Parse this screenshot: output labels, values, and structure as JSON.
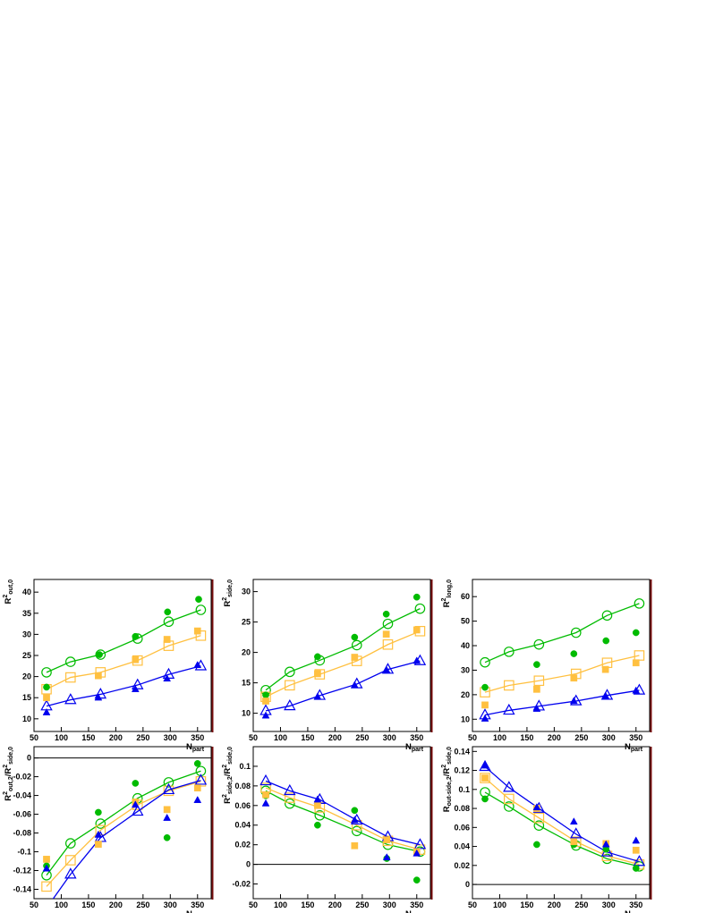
{
  "chart_data": [
    {
      "type": "scatter",
      "ylabel": [
        {
          "t": "R"
        },
        {
          "t": "2",
          "s": "sup"
        },
        {
          "t": "out,0",
          "s": "sub"
        }
      ],
      "xlabel": [
        {
          "t": "N"
        },
        {
          "t": "part",
          "s": "sub"
        }
      ],
      "xlim": [
        50,
        375
      ],
      "xticks": [
        50,
        100,
        150,
        200,
        250,
        300,
        350
      ],
      "ylim": [
        7,
        43
      ],
      "yticks": [
        10,
        15,
        20,
        25,
        30,
        35,
        40
      ],
      "zero_line": false,
      "series": [
        {
          "marker": "circle",
          "filled": false,
          "line": true,
          "color": "#00bb00",
          "x": [
            73,
            117,
            172,
            240,
            297,
            356
          ],
          "values": [
            21,
            23.5,
            25.2,
            29,
            33,
            35.8
          ]
        },
        {
          "marker": "square",
          "filled": false,
          "line": true,
          "color": "#ffc040",
          "x": [
            73,
            117,
            172,
            240,
            297,
            356
          ],
          "values": [
            17,
            19.8,
            21,
            23.8,
            27.3,
            29.7
          ]
        },
        {
          "marker": "triangle",
          "filled": false,
          "line": true,
          "color": "#0000ee",
          "x": [
            73,
            117,
            172,
            240,
            297,
            356
          ],
          "values": [
            13,
            14.5,
            15.8,
            18,
            20.5,
            22.5
          ]
        },
        {
          "marker": "circle",
          "filled": true,
          "line": false,
          "color": "#00bb00",
          "x": [
            73,
            170,
            236,
            295,
            352
          ],
          "values": [
            17.5,
            25.2,
            29.5,
            35.3,
            38.3
          ]
        },
        {
          "marker": "square",
          "filled": true,
          "line": false,
          "color": "#ffc040",
          "x": [
            73,
            168,
            236,
            294,
            350
          ],
          "values": [
            15,
            20.2,
            24,
            28.8,
            30.8
          ]
        },
        {
          "marker": "triangle",
          "filled": true,
          "line": false,
          "color": "#0000ee",
          "x": [
            73,
            168,
            236,
            294,
            350
          ],
          "values": [
            11.5,
            15,
            17,
            19.5,
            22.7
          ]
        }
      ]
    },
    {
      "type": "scatter",
      "ylabel": [
        {
          "t": "R"
        },
        {
          "t": "2",
          "s": "sup"
        },
        {
          "t": "side,0",
          "s": "sub"
        }
      ],
      "xlabel": [
        {
          "t": "N"
        },
        {
          "t": "part",
          "s": "sub"
        }
      ],
      "xlim": [
        50,
        375
      ],
      "xticks": [
        50,
        100,
        150,
        200,
        250,
        300,
        350
      ],
      "ylim": [
        7,
        32
      ],
      "yticks": [
        10,
        15,
        20,
        25,
        30
      ],
      "zero_line": false,
      "series": [
        {
          "marker": "circle",
          "filled": false,
          "line": true,
          "color": "#00bb00",
          "x": [
            73,
            117,
            172,
            240,
            297,
            356
          ],
          "values": [
            13.8,
            16.8,
            18.7,
            21.2,
            24.7,
            27.2
          ]
        },
        {
          "marker": "square",
          "filled": false,
          "line": true,
          "color": "#ffc040",
          "x": [
            73,
            117,
            172,
            240,
            297,
            356
          ],
          "values": [
            12.7,
            14.6,
            16.4,
            18.6,
            21.3,
            23.5
          ]
        },
        {
          "marker": "triangle",
          "filled": false,
          "line": true,
          "color": "#0000ee",
          "x": [
            73,
            117,
            172,
            240,
            297,
            356
          ],
          "values": [
            10.4,
            11.2,
            12.9,
            14.8,
            17.2,
            18.6
          ]
        },
        {
          "marker": "circle",
          "filled": true,
          "line": false,
          "color": "#00bb00",
          "x": [
            73,
            168,
            236,
            294,
            350
          ],
          "values": [
            13,
            19.3,
            22.5,
            26.3,
            29.1
          ]
        },
        {
          "marker": "square",
          "filled": true,
          "line": false,
          "color": "#ffc040",
          "x": [
            73,
            168,
            236,
            294,
            350
          ],
          "values": [
            12,
            16.5,
            19.2,
            23,
            23.7
          ]
        },
        {
          "marker": "triangle",
          "filled": true,
          "line": false,
          "color": "#0000ee",
          "x": [
            73,
            168,
            236,
            295,
            350
          ],
          "values": [
            9.6,
            12.7,
            14.6,
            17,
            18.6
          ]
        }
      ]
    },
    {
      "type": "scatter",
      "ylabel": [
        {
          "t": "R"
        },
        {
          "t": "2",
          "s": "sup"
        },
        {
          "t": "long,0",
          "s": "sub"
        }
      ],
      "xlabel": [
        {
          "t": "N"
        },
        {
          "t": "part",
          "s": "sub"
        }
      ],
      "xlim": [
        50,
        375
      ],
      "xticks": [
        50,
        100,
        150,
        200,
        250,
        300,
        350
      ],
      "ylim": [
        5,
        67
      ],
      "yticks": [
        10,
        20,
        30,
        40,
        50,
        60
      ],
      "zero_line": false,
      "series": [
        {
          "marker": "circle",
          "filled": false,
          "line": true,
          "color": "#00bb00",
          "x": [
            73,
            117,
            172,
            240,
            297,
            356
          ],
          "values": [
            33.2,
            37.5,
            40.5,
            45.3,
            52.3,
            57.2
          ]
        },
        {
          "marker": "square",
          "filled": false,
          "line": true,
          "color": "#ffc040",
          "x": [
            73,
            117,
            172,
            240,
            297,
            356
          ],
          "values": [
            21,
            23.8,
            25.7,
            28.5,
            33,
            36
          ]
        },
        {
          "marker": "triangle",
          "filled": false,
          "line": true,
          "color": "#0000ee",
          "x": [
            73,
            117,
            172,
            240,
            297,
            356
          ],
          "values": [
            11.7,
            13.6,
            15.3,
            17.4,
            19.7,
            21.8
          ]
        },
        {
          "marker": "circle",
          "filled": true,
          "line": false,
          "color": "#00bb00",
          "x": [
            73,
            168,
            236,
            295,
            350
          ],
          "values": [
            23,
            32.3,
            36.7,
            42,
            45.3
          ]
        },
        {
          "marker": "square",
          "filled": true,
          "line": false,
          "color": "#ffc040",
          "x": [
            73,
            168,
            236,
            294,
            350
          ],
          "values": [
            15.8,
            22.2,
            26.8,
            30.3,
            33
          ]
        },
        {
          "marker": "triangle",
          "filled": true,
          "line": false,
          "color": "#0000ee",
          "x": [
            73,
            168,
            236,
            294,
            350
          ],
          "values": [
            10.2,
            14.2,
            17.4,
            19.5,
            21.6
          ]
        }
      ]
    },
    {
      "type": "scatter",
      "ylabel": [
        {
          "t": "R"
        },
        {
          "t": "2",
          "s": "sup"
        },
        {
          "t": "out,2",
          "s": "sub"
        },
        {
          "t": "/R"
        },
        {
          "t": "2",
          "s": "sup"
        },
        {
          "t": "side,0",
          "s": "sub"
        }
      ],
      "xlabel": [
        {
          "t": "N"
        },
        {
          "t": "part",
          "s": "sub"
        }
      ],
      "xlim": [
        50,
        375
      ],
      "xticks": [
        50,
        100,
        150,
        200,
        250,
        300,
        350
      ],
      "ylim": [
        -0.15,
        0.012
      ],
      "yticks": [
        -0.14,
        -0.12,
        -0.1,
        -0.08,
        -0.06,
        -0.04,
        -0.02,
        0
      ],
      "zero_line": true,
      "series": [
        {
          "marker": "circle",
          "filled": false,
          "line": true,
          "color": "#00bb00",
          "x": [
            73,
            117,
            172,
            240,
            297,
            356
          ],
          "values": [
            -0.125,
            -0.091,
            -0.07,
            -0.043,
            -0.026,
            -0.014
          ]
        },
        {
          "marker": "square",
          "filled": false,
          "line": true,
          "color": "#ffc040",
          "x": [
            73,
            117,
            172,
            240,
            297,
            356
          ],
          "values": [
            -0.137,
            -0.109,
            -0.077,
            -0.05,
            -0.035,
            -0.025
          ]
        },
        {
          "marker": "triangle",
          "filled": false,
          "line": true,
          "color": "#0000ee",
          "x": [
            73,
            117,
            172,
            240,
            297,
            356
          ],
          "values": [
            -0.16,
            -0.124,
            -0.085,
            -0.057,
            -0.034,
            -0.024
          ]
        },
        {
          "marker": "circle",
          "filled": true,
          "line": false,
          "color": "#00bb00",
          "x": [
            73,
            168,
            236,
            294,
            350
          ],
          "values": [
            -0.115,
            -0.058,
            -0.027,
            -0.085,
            -0.006
          ]
        },
        {
          "marker": "square",
          "filled": true,
          "line": false,
          "color": "#ffc040",
          "x": [
            73,
            168,
            236,
            294,
            350
          ],
          "values": [
            -0.108,
            -0.092,
            -0.047,
            -0.055,
            -0.032
          ]
        },
        {
          "marker": "triangle",
          "filled": true,
          "line": false,
          "color": "#0000ee",
          "x": [
            73,
            168,
            236,
            294,
            350
          ],
          "values": [
            -0.118,
            -0.082,
            -0.05,
            -0.064,
            -0.045
          ]
        }
      ]
    },
    {
      "type": "scatter",
      "ylabel": [
        {
          "t": "R"
        },
        {
          "t": "2",
          "s": "sup"
        },
        {
          "t": "side,2",
          "s": "sub"
        },
        {
          "t": "/R"
        },
        {
          "t": "2",
          "s": "sup"
        },
        {
          "t": "side,0",
          "s": "sub"
        }
      ],
      "xlabel": [
        {
          "t": "N"
        },
        {
          "t": "part",
          "s": "sub"
        }
      ],
      "xlim": [
        50,
        375
      ],
      "xticks": [
        50,
        100,
        150,
        200,
        250,
        300,
        350
      ],
      "ylim": [
        -0.035,
        0.12
      ],
      "yticks": [
        -0.02,
        0,
        0.02,
        0.04,
        0.06,
        0.08,
        0.1
      ],
      "zero_line": true,
      "series": [
        {
          "marker": "circle",
          "filled": false,
          "line": true,
          "color": "#00bb00",
          "x": [
            73,
            117,
            172,
            240,
            297,
            356
          ],
          "values": [
            0.075,
            0.062,
            0.05,
            0.034,
            0.02,
            0.013
          ]
        },
        {
          "marker": "square",
          "filled": false,
          "line": true,
          "color": "#ffc040",
          "x": [
            73,
            117,
            172,
            240,
            297,
            356
          ],
          "values": [
            0.078,
            0.068,
            0.058,
            0.04,
            0.024,
            0.015
          ]
        },
        {
          "marker": "triangle",
          "filled": false,
          "line": true,
          "color": "#0000ee",
          "x": [
            73,
            117,
            172,
            240,
            297,
            356
          ],
          "values": [
            0.085,
            0.075,
            0.066,
            0.045,
            0.028,
            0.02
          ]
        },
        {
          "marker": "circle",
          "filled": true,
          "line": false,
          "color": "#00bb00",
          "x": [
            73,
            168,
            236,
            295,
            350
          ],
          "values": [
            0.07,
            0.04,
            0.055,
            0.006,
            -0.016
          ]
        },
        {
          "marker": "square",
          "filled": true,
          "line": false,
          "color": "#ffc040",
          "x": [
            73,
            168,
            236,
            295,
            350
          ],
          "values": [
            0.071,
            0.06,
            0.019,
            0.025,
            0.013
          ]
        },
        {
          "marker": "triangle",
          "filled": true,
          "line": false,
          "color": "#0000ee",
          "x": [
            73,
            168,
            236,
            295,
            350
          ],
          "values": [
            0.062,
            0.066,
            0.045,
            0.007,
            0.011
          ]
        }
      ]
    },
    {
      "type": "scatter",
      "ylabel": [
        {
          "t": "R"
        },
        {
          "t": "out-side,2",
          "s": "sub"
        },
        {
          "t": "/R"
        },
        {
          "t": "2",
          "s": "sup"
        },
        {
          "t": "side,0",
          "s": "sub"
        }
      ],
      "xlabel": [
        {
          "t": "N"
        },
        {
          "t": "part",
          "s": "sub"
        }
      ],
      "xlim": [
        50,
        375
      ],
      "xticks": [
        50,
        100,
        150,
        200,
        250,
        300,
        350
      ],
      "ylim": [
        -0.015,
        0.145
      ],
      "yticks": [
        0,
        0.02,
        0.04,
        0.06,
        0.08,
        0.1,
        0.12,
        0.14
      ],
      "zero_line": true,
      "series": [
        {
          "marker": "circle",
          "filled": false,
          "line": true,
          "color": "#00bb00",
          "x": [
            73,
            117,
            172,
            240,
            297,
            356
          ],
          "values": [
            0.097,
            0.082,
            0.062,
            0.041,
            0.027,
            0.019
          ]
        },
        {
          "marker": "square",
          "filled": false,
          "line": true,
          "color": "#ffc040",
          "x": [
            73,
            117,
            172,
            240,
            297,
            356
          ],
          "values": [
            0.112,
            0.09,
            0.07,
            0.045,
            0.03,
            0.021
          ]
        },
        {
          "marker": "triangle",
          "filled": false,
          "line": true,
          "color": "#0000ee",
          "x": [
            73,
            117,
            172,
            240,
            297,
            356
          ],
          "values": [
            0.124,
            0.102,
            0.08,
            0.053,
            0.034,
            0.024
          ]
        },
        {
          "marker": "circle",
          "filled": true,
          "line": false,
          "color": "#00bb00",
          "x": [
            73,
            168,
            236,
            295,
            350
          ],
          "values": [
            0.09,
            0.042,
            0.042,
            0.037,
            0.017
          ]
        },
        {
          "marker": "square",
          "filled": true,
          "line": false,
          "color": "#ffc040",
          "x": [
            73,
            168,
            236,
            295,
            350
          ],
          "values": [
            0.112,
            0.08,
            0.045,
            0.043,
            0.036
          ]
        },
        {
          "marker": "triangle",
          "filled": true,
          "line": false,
          "color": "#0000ee",
          "x": [
            73,
            168,
            236,
            295,
            350
          ],
          "values": [
            0.125,
            0.081,
            0.066,
            0.042,
            0.046
          ]
        }
      ]
    }
  ]
}
